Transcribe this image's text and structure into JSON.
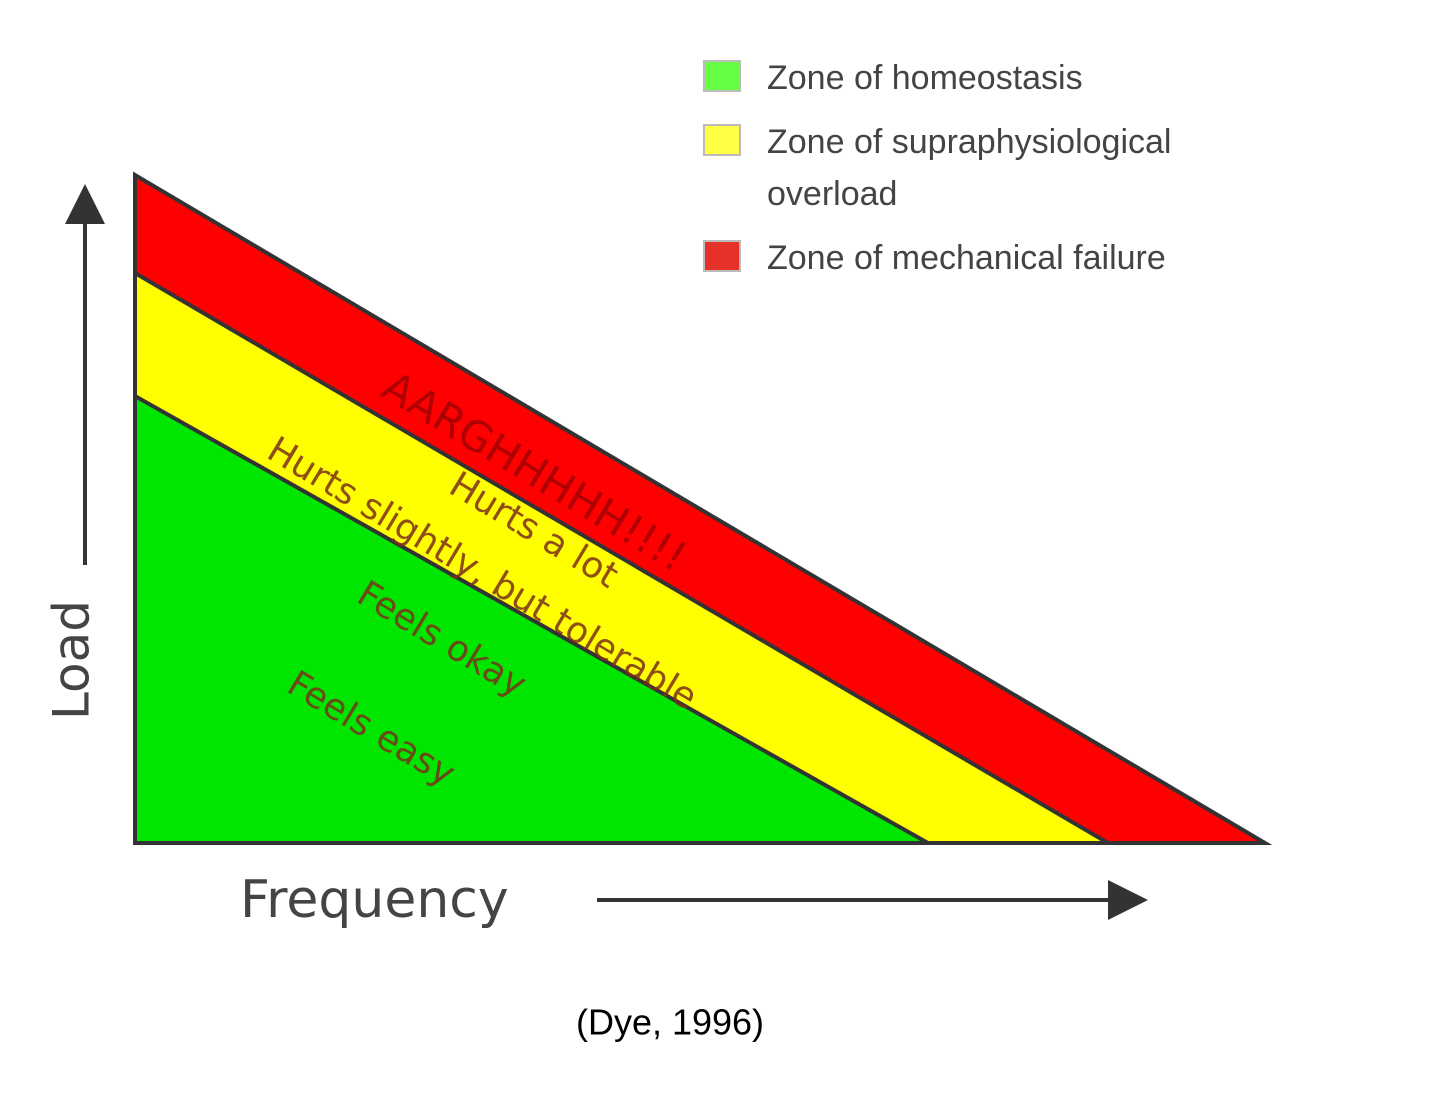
{
  "legend": [
    {
      "label": "Zone of homeostasis"
    },
    {
      "label": "Zone of supraphysiological overload"
    },
    {
      "label": "Zone of mechanical failure"
    }
  ],
  "zone_labels": [
    "AARGHHHHH!!!!",
    "Hurts a lot",
    "Hurts slightly, but tolerable",
    "Feels okay",
    "Feels easy"
  ],
  "axes": {
    "y": "Load",
    "x": "Frequency"
  },
  "citation": "(Dye, 1996)"
}
